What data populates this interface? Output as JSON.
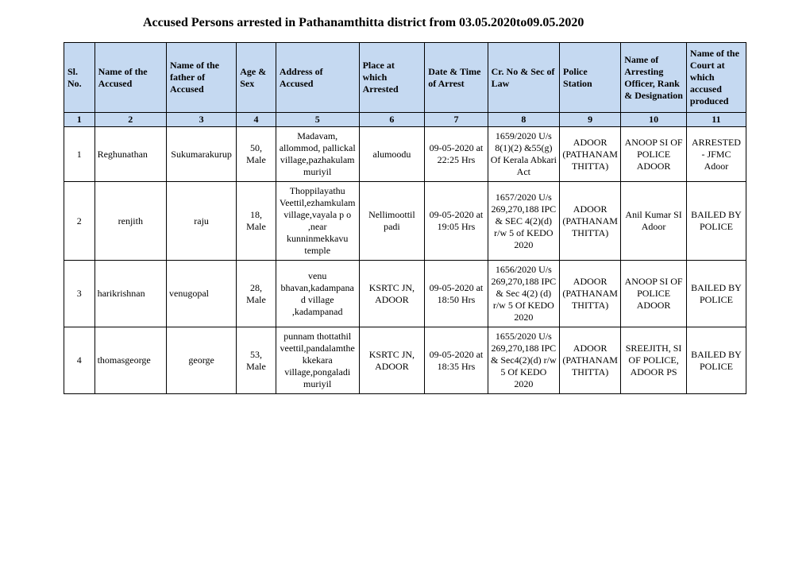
{
  "title": "Accused Persons arrested in   Pathanamthitta   district from  03.05.2020to09.05.2020",
  "headers": {
    "c1": "Sl. No.",
    "c2": "Name of the Accused",
    "c3": "Name of the father of Accused",
    "c4": "Age & Sex",
    "c5": "Address of Accused",
    "c6": "Place at which Arrested",
    "c7": "Date & Time of Arrest",
    "c8": "Cr. No & Sec of Law",
    "c9": "Police Station",
    "c10": "Name of Arresting Officer, Rank & Designation",
    "c11": "Name of the Court at which accused produced"
  },
  "numrow": [
    "1",
    "2",
    "3",
    "4",
    "5",
    "6",
    "7",
    "8",
    "9",
    "10",
    "11"
  ],
  "rows": [
    {
      "sl": "1",
      "accused": "Reghunathan",
      "father": "Sukumarakurup",
      "age": "50, Male",
      "address": "Madavam, allommod, pallickal village,pazhakulam muriyil",
      "place": "alumoodu",
      "datetime": "09-05-2020 at 22:25 Hrs",
      "crno": "1659/2020 U/s 8(1)(2) &55(g) Of Kerala Abkari Act",
      "station": "ADOOR (PATHANAMTHITTA)",
      "officer": "ANOOP SI OF POLICE ADOOR",
      "court": "ARRESTED - JFMC Adoor"
    },
    {
      "sl": "2",
      "accused": "renjith",
      "father": "raju",
      "age": "18, Male",
      "address": "Thoppilayathu Veettil,ezhamkulam village,vayala p o ,near kunninmekkavu temple",
      "place": "Nellimoottil padi",
      "datetime": "09-05-2020 at 19:05 Hrs",
      "crno": "1657/2020 U/s 269,270,188 IPC & SEC 4(2)(d) r/w 5 of KEDO 2020",
      "station": "ADOOR (PATHANAMTHITTA)",
      "officer": "Anil Kumar SI Adoor",
      "court": "BAILED BY POLICE"
    },
    {
      "sl": "3",
      "accused": "harikrishnan",
      "father": "venugopal",
      "age": "28, Male",
      "address": "venu bhavan,kadampanad village ,kadampanad",
      "place": "KSRTC JN, ADOOR",
      "datetime": "09-05-2020 at 18:50 Hrs",
      "crno": "1656/2020 U/s 269,270,188 IPC & Sec 4(2) (d) r/w 5 Of KEDO 2020",
      "station": "ADOOR (PATHANAMTHITTA)",
      "officer": "ANOOP SI OF POLICE ADOOR",
      "court": "BAILED BY POLICE"
    },
    {
      "sl": "4",
      "accused": "thomasgeorge",
      "father": "george",
      "age": "53, Male",
      "address": "punnam thottathil veettil,pandalamthekkekara village,pongaladi muriyil",
      "place": "KSRTC JN, ADOOR",
      "datetime": "09-05-2020 at 18:35 Hrs",
      "crno": "1655/2020 U/s 269,270,188 IPC & Sec4(2)(d) r/w 5 Of KEDO 2020",
      "station": "ADOOR (PATHANAMTHITTA)",
      "officer": "SREEJITH, SI OF POLICE, ADOOR PS",
      "court": "BAILED BY POLICE"
    }
  ]
}
